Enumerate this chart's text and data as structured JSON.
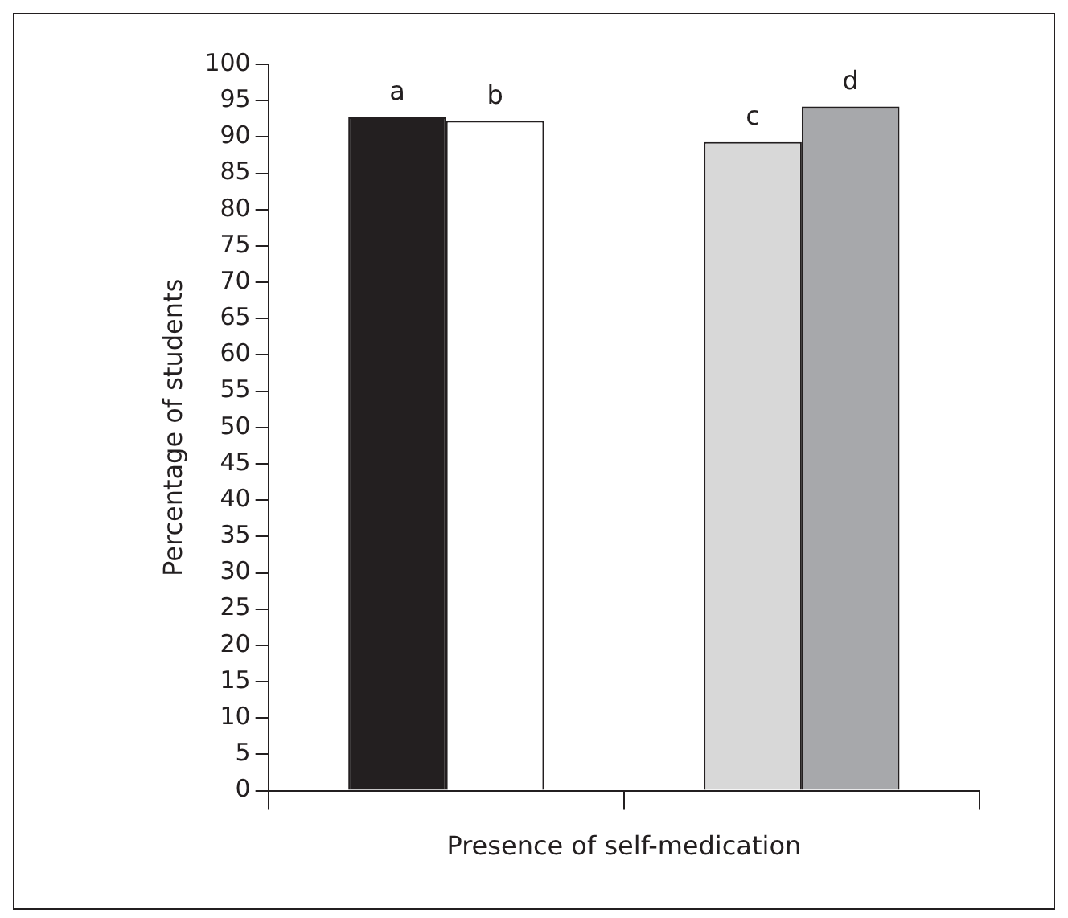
{
  "chart_data": {
    "type": "bar",
    "xlabel": "Presence of self-medication",
    "ylabel": "Percentage of students",
    "categories": [
      null,
      null
    ],
    "series": [
      {
        "colors": [
          "#231f20",
          "#d8d8d8"
        ],
        "values": [
          92.7,
          89.3
        ],
        "value_labels": [
          "a",
          "c"
        ]
      },
      {
        "colors": [
          "#ffffff",
          "#a7a8ab"
        ],
        "values": [
          92.2,
          94.2
        ],
        "value_labels": [
          "b",
          "d"
        ]
      }
    ],
    "ylim": [
      0,
      100
    ],
    "yticks": [
      0,
      5,
      10,
      15,
      20,
      25,
      30,
      35,
      40,
      45,
      50,
      55,
      60,
      65,
      70,
      75,
      80,
      85,
      90,
      95,
      100
    ],
    "grid": false,
    "legend": false
  }
}
